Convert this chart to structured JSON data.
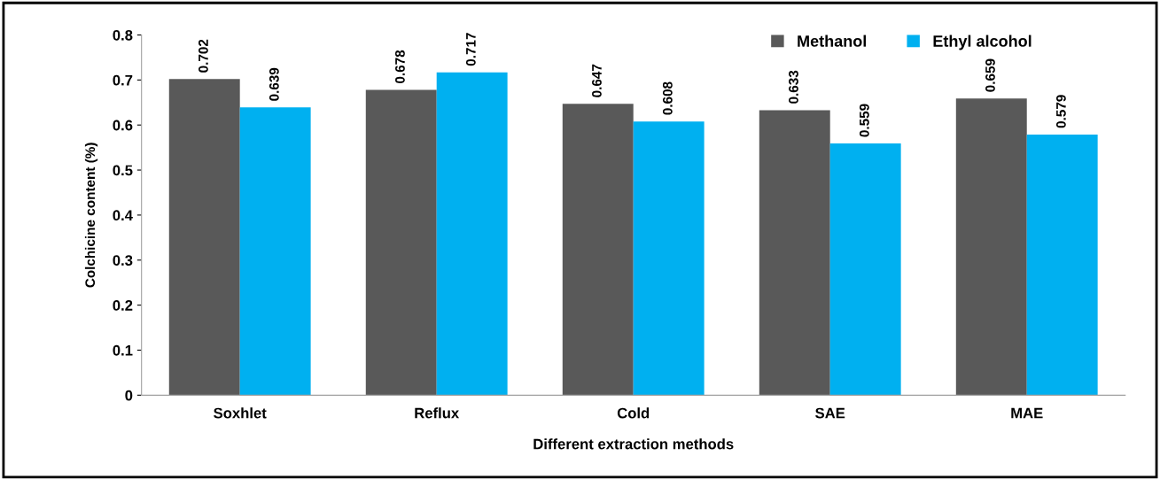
{
  "chart_data": {
    "type": "bar",
    "xlabel": "Different extraction methods",
    "ylabel": "Colchicine content (%)",
    "categories": [
      "Soxhlet",
      "Reflux",
      "Cold",
      "SAE",
      "MAE"
    ],
    "series": [
      {
        "name": "Methanol",
        "color": "#595959",
        "values": [
          0.702,
          0.678,
          0.647,
          0.633,
          0.659
        ]
      },
      {
        "name": "Ethyl alcohol",
        "color": "#00b0f0",
        "values": [
          0.639,
          0.717,
          0.608,
          0.559,
          0.579
        ]
      }
    ],
    "ylim": [
      0,
      0.8
    ],
    "yticks": [
      0,
      0.1,
      0.2,
      0.3,
      0.4,
      0.5,
      0.6,
      0.7,
      0.8
    ],
    "data_labels": true,
    "legend": "top right",
    "grid": false
  }
}
